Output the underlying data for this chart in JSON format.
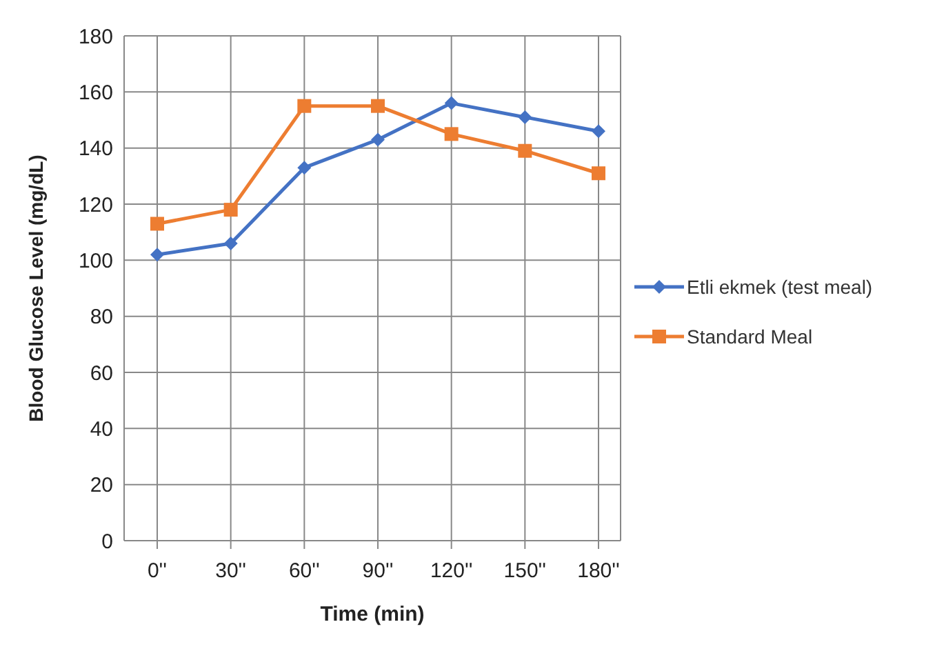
{
  "chart_data": {
    "type": "line",
    "xlabel": "Time (min)",
    "ylabel": "Blood Glucose  Level (mg/dL)",
    "categories": [
      "0''",
      "30''",
      "60''",
      "90''",
      "120''",
      "150''",
      "180''"
    ],
    "series": [
      {
        "name": "Etli ekmek (test meal)",
        "color": "#4472c4",
        "marker": "diamond",
        "values": [
          102,
          106,
          133,
          143,
          156,
          151,
          146
        ]
      },
      {
        "name": "Standard Meal",
        "color": "#ed7d31",
        "marker": "square",
        "values": [
          113,
          118,
          155,
          155,
          145,
          139,
          131
        ]
      }
    ],
    "ylim": [
      0,
      180
    ],
    "yticks": [
      0,
      20,
      40,
      60,
      80,
      100,
      120,
      140,
      160,
      180
    ],
    "grid": true,
    "legend": "right",
    "line_style": "solid"
  }
}
